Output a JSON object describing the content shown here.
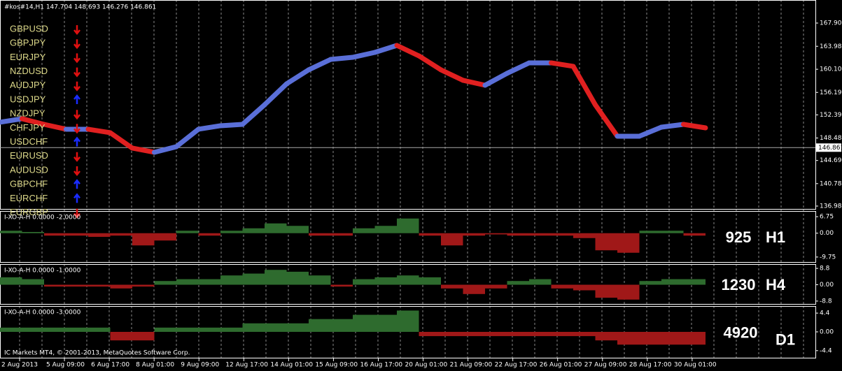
{
  "header": "#kos#14,H1  147.704 148.693 146.276 146.861",
  "signals": [
    {
      "pair": "GBPUSD",
      "direction": "down"
    },
    {
      "pair": "GBPJPY",
      "direction": "down"
    },
    {
      "pair": "EURJPY",
      "direction": "down"
    },
    {
      "pair": "NZDUSD",
      "direction": "down"
    },
    {
      "pair": "AUDJPY",
      "direction": "down"
    },
    {
      "pair": "USDJPY",
      "direction": "up"
    },
    {
      "pair": "NZDJPY",
      "direction": "down"
    },
    {
      "pair": "CHFJPY",
      "direction": "down"
    },
    {
      "pair": "USDCHF",
      "direction": "up"
    },
    {
      "pair": "EURUSD",
      "direction": "down"
    },
    {
      "pair": "AUDUSD",
      "direction": "down"
    },
    {
      "pair": "GBPCHF",
      "direction": "up"
    },
    {
      "pair": "EURCHF",
      "direction": "up"
    },
    {
      "pair": "EURGBP",
      "direction": "down"
    }
  ],
  "price": {
    "values": [
      151.15,
      151.74,
      150.79,
      149.97,
      149.97,
      149.38,
      146.78,
      146.07,
      147.02,
      149.97,
      150.56,
      150.79,
      154.1,
      157.64,
      160.0,
      161.77,
      162.12,
      162.95,
      164.13,
      162.36,
      160.0,
      158.23,
      157.4,
      159.41,
      161.18,
      161.18,
      160.59,
      154.1,
      148.79,
      148.79,
      150.32,
      150.79,
      150.2
    ],
    "ylim": [
      136.39,
      171.8
    ],
    "yticks": [
      167.905,
      {
        "value": 163.98,
        "label": "163.980"
      },
      {
        "value": 160.1,
        "label": "160.100"
      },
      {
        "value": 156.19,
        "label": "156.190"
      },
      152.395,
      148.485,
      {
        "value": 144.69,
        "label": "144.690"
      },
      {
        "value": 140.78,
        "label": "140.780"
      },
      136.985
    ],
    "current": 146.861,
    "up_color": "#5a6fd8",
    "down_color": "#e02020"
  },
  "panels": [
    {
      "label": "I-XO-A-H 0.0000 -2.0000",
      "count": "925",
      "timeframe": "H1",
      "ylim": [
        -12.07,
        9.07
      ],
      "yticks": [
        6.75,
        {
          "value": 0,
          "label": "0.00"
        },
        -9.75
      ],
      "values": [
        1,
        0.5,
        -1,
        -1,
        -1.5,
        -1,
        -5,
        -3,
        1,
        -1,
        1,
        2,
        4,
        3,
        -1,
        -1,
        2,
        3,
        6,
        -1,
        -5,
        -1,
        -0.5,
        -1,
        -1,
        -1,
        -2,
        -7,
        -8,
        1,
        1,
        -1
      ]
    },
    {
      "label": "I-XO-A-H 0.0000 -1.0000",
      "count": "1230",
      "timeframe": "H4",
      "ylim": [
        -10.71,
        11.1
      ],
      "yticks": [
        8.8,
        {
          "value": 0,
          "label": "0.00"
        },
        -8.8
      ],
      "values": [
        4,
        3,
        -1,
        -1,
        -1,
        -2,
        -1,
        2,
        3,
        3,
        5,
        6,
        8,
        7,
        5,
        -1,
        3,
        4,
        5,
        4,
        -2,
        -5,
        -2,
        2,
        3,
        -2,
        -3,
        -7,
        -8,
        2,
        3,
        3
      ]
    },
    {
      "label": "I-XO-A-H 0.0000 -3.0000",
      "count": "4920",
      "timeframe": "D1",
      "ylim": [
        -6.23,
        6.06
      ],
      "yticks": [
        4.4,
        {
          "value": 0,
          "label": "0.00"
        },
        -4.4
      ],
      "values": [
        1,
        1,
        1,
        1,
        1,
        -2,
        -2,
        1,
        1,
        1,
        1,
        2,
        2,
        2,
        3,
        3,
        4,
        4,
        5,
        -1,
        -1,
        -1,
        -1,
        -1,
        -1,
        -1,
        -1,
        -2,
        -3,
        -3,
        -3,
        -3
      ]
    }
  ],
  "pos_color": "#2e6b2e",
  "neg_color": "#a01818",
  "copyright": "IC Markets MT4, © 2001-2013, MetaQuotes Software Corp.",
  "x_labels": [
    "2 Aug 2013",
    "5 Aug 09:00",
    "6 Aug 17:00",
    "8 Aug 01:00",
    "9 Aug 09:00",
    "12 Aug 17:00",
    "14 Aug 01:00",
    "15 Aug 09:00",
    "16 Aug 17:00",
    "20 Aug 01:00",
    "21 Aug 09:00",
    "22 Aug 17:00",
    "26 Aug 01:00",
    "27 Aug 09:00",
    "28 Aug 17:00",
    "30 Aug 01:00"
  ]
}
